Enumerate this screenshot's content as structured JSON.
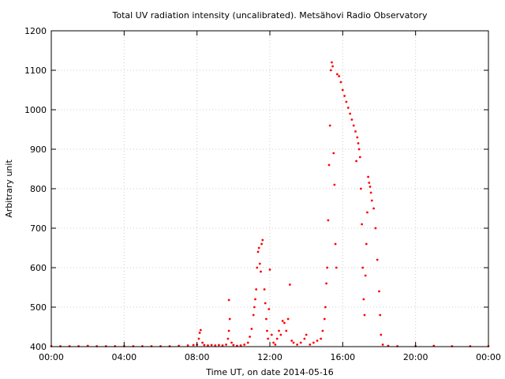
{
  "chart_data": {
    "type": "scatter",
    "title": "Total UV radiation intensity (uncalibrated). Metsähovi Radio Observatory",
    "xlabel": "Time UT, on date 2014-05-16",
    "ylabel": "Arbitrary unit",
    "x_unit": "hours UT",
    "xlim": [
      0,
      24
    ],
    "ylim": [
      400,
      1200
    ],
    "x_ticks": [
      {
        "value": 0,
        "label": "00:00"
      },
      {
        "value": 4,
        "label": "04:00"
      },
      {
        "value": 8,
        "label": "08:00"
      },
      {
        "value": 12,
        "label": "12:00"
      },
      {
        "value": 16,
        "label": "16:00"
      },
      {
        "value": 20,
        "label": "20:00"
      },
      {
        "value": 24,
        "label": "00:00"
      }
    ],
    "y_ticks": [
      400,
      500,
      600,
      700,
      800,
      900,
      1000,
      1100,
      1200
    ],
    "grid": true,
    "marker_color": "#ff0000",
    "series": [
      {
        "values": [
          [
            0.0,
            401
          ],
          [
            0.5,
            401
          ],
          [
            1.0,
            401
          ],
          [
            1.5,
            401
          ],
          [
            2.0,
            402
          ],
          [
            2.5,
            401
          ],
          [
            3.0,
            401
          ],
          [
            3.5,
            401
          ],
          [
            4.0,
            401
          ],
          [
            4.5,
            401
          ],
          [
            5.0,
            401
          ],
          [
            5.5,
            401
          ],
          [
            6.0,
            401
          ],
          [
            6.5,
            401
          ],
          [
            7.0,
            402
          ],
          [
            7.5,
            403
          ],
          [
            7.8,
            404
          ],
          [
            8.0,
            405
          ],
          [
            8.1,
            420
          ],
          [
            8.15,
            435
          ],
          [
            8.2,
            442
          ],
          [
            8.3,
            410
          ],
          [
            8.4,
            404
          ],
          [
            8.6,
            403
          ],
          [
            8.8,
            404
          ],
          [
            9.0,
            403
          ],
          [
            9.2,
            404
          ],
          [
            9.4,
            403
          ],
          [
            9.6,
            405
          ],
          [
            9.7,
            420
          ],
          [
            9.75,
            440
          ],
          [
            9.8,
            470
          ],
          [
            9.75,
            518
          ],
          [
            9.9,
            410
          ],
          [
            10.0,
            404
          ],
          [
            10.2,
            402
          ],
          [
            10.4,
            403
          ],
          [
            10.6,
            405
          ],
          [
            10.8,
            410
          ],
          [
            10.9,
            425
          ],
          [
            11.0,
            445
          ],
          [
            11.1,
            480
          ],
          [
            11.15,
            500
          ],
          [
            11.2,
            520
          ],
          [
            11.25,
            545
          ],
          [
            11.3,
            600
          ],
          [
            11.35,
            640
          ],
          [
            11.4,
            650
          ],
          [
            11.45,
            610
          ],
          [
            11.5,
            590
          ],
          [
            11.55,
            660
          ],
          [
            11.6,
            670
          ],
          [
            11.7,
            545
          ],
          [
            11.75,
            510
          ],
          [
            11.8,
            470
          ],
          [
            11.85,
            440
          ],
          [
            11.9,
            420
          ],
          [
            11.95,
            495
          ],
          [
            12.0,
            595
          ],
          [
            12.1,
            430
          ],
          [
            12.2,
            410
          ],
          [
            12.3,
            405
          ],
          [
            12.4,
            420
          ],
          [
            12.5,
            440
          ],
          [
            12.6,
            430
          ],
          [
            12.7,
            465
          ],
          [
            12.8,
            460
          ],
          [
            12.9,
            440
          ],
          [
            13.0,
            470
          ],
          [
            13.1,
            557
          ],
          [
            13.2,
            415
          ],
          [
            13.3,
            410
          ],
          [
            13.5,
            405
          ],
          [
            13.7,
            410
          ],
          [
            13.9,
            420
          ],
          [
            14.0,
            430
          ],
          [
            14.2,
            405
          ],
          [
            14.4,
            410
          ],
          [
            14.6,
            415
          ],
          [
            14.8,
            420
          ],
          [
            14.9,
            440
          ],
          [
            15.0,
            470
          ],
          [
            15.05,
            500
          ],
          [
            15.1,
            560
          ],
          [
            15.15,
            600
          ],
          [
            15.2,
            720
          ],
          [
            15.25,
            860
          ],
          [
            15.3,
            960
          ],
          [
            15.35,
            1100
          ],
          [
            15.4,
            1120
          ],
          [
            15.45,
            1110
          ],
          [
            15.5,
            890
          ],
          [
            15.55,
            810
          ],
          [
            15.6,
            660
          ],
          [
            15.65,
            600
          ],
          [
            15.7,
            1090
          ],
          [
            15.8,
            1085
          ],
          [
            15.9,
            1070
          ],
          [
            16.0,
            1050
          ],
          [
            16.1,
            1035
          ],
          [
            16.2,
            1020
          ],
          [
            16.3,
            1005
          ],
          [
            16.4,
            990
          ],
          [
            16.5,
            975
          ],
          [
            16.6,
            960
          ],
          [
            16.7,
            945
          ],
          [
            16.75,
            870
          ],
          [
            16.8,
            930
          ],
          [
            16.85,
            915
          ],
          [
            16.9,
            900
          ],
          [
            16.95,
            880
          ],
          [
            17.0,
            800
          ],
          [
            17.05,
            710
          ],
          [
            17.1,
            600
          ],
          [
            17.15,
            520
          ],
          [
            17.2,
            480
          ],
          [
            17.25,
            580
          ],
          [
            17.3,
            660
          ],
          [
            17.35,
            740
          ],
          [
            17.4,
            830
          ],
          [
            17.45,
            815
          ],
          [
            17.5,
            805
          ],
          [
            17.55,
            790
          ],
          [
            17.6,
            770
          ],
          [
            17.7,
            750
          ],
          [
            17.8,
            700
          ],
          [
            17.9,
            620
          ],
          [
            18.0,
            540
          ],
          [
            18.05,
            480
          ],
          [
            18.1,
            430
          ],
          [
            18.2,
            405
          ],
          [
            18.5,
            402
          ],
          [
            19.0,
            401
          ],
          [
            20.0,
            401
          ],
          [
            21.0,
            402
          ],
          [
            22.0,
            401
          ],
          [
            23.0,
            401
          ],
          [
            24.0,
            401
          ]
        ]
      }
    ]
  }
}
